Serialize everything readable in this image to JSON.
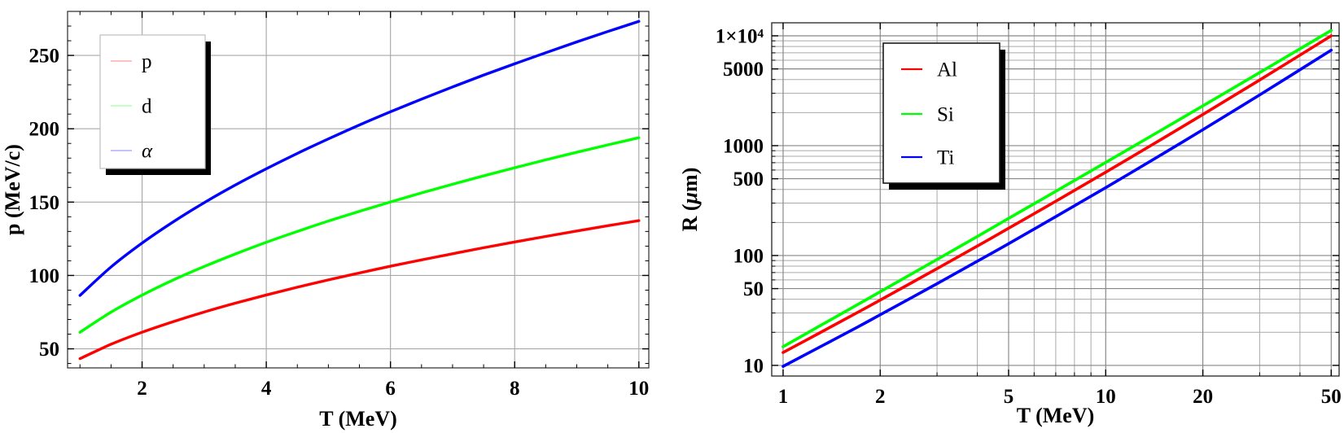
{
  "page": {
    "background": "#ffffff"
  },
  "chart_data": [
    {
      "id": "momentum",
      "type": "line",
      "title": "",
      "xlabel": "T (MeV)",
      "ylabel": "p (MeV/c)",
      "xscale": "linear",
      "yscale": "linear",
      "xlim": [
        0.8,
        10.16
      ],
      "ylim": [
        37,
        280
      ],
      "grid_draw_minor": false,
      "ticks": {
        "x_major": [
          {
            "v": 2,
            "label": "2"
          },
          {
            "v": 4,
            "label": "4"
          },
          {
            "v": 6,
            "label": "6"
          },
          {
            "v": 8,
            "label": "8"
          },
          {
            "v": 10,
            "label": "10"
          }
        ],
        "y_major": [
          {
            "v": 50,
            "label": "50"
          },
          {
            "v": 100,
            "label": "100"
          },
          {
            "v": 150,
            "label": "150"
          },
          {
            "v": 200,
            "label": "200"
          },
          {
            "v": 250,
            "label": "250"
          }
        ],
        "x_minor": [
          1,
          1.5,
          2.5,
          3,
          3.5,
          4.5,
          5,
          5.5,
          6.5,
          7,
          7.5,
          8.5,
          9,
          9.5
        ],
        "y_minor": [
          40,
          60,
          70,
          80,
          90,
          110,
          120,
          130,
          140,
          160,
          170,
          180,
          190,
          210,
          220,
          230,
          240,
          260,
          270
        ]
      },
      "legend": {
        "position": "top-left",
        "entries": [
          {
            "label": "p",
            "color": "#ff0000"
          },
          {
            "label": "d",
            "color": "#00ff00"
          },
          {
            "label": "α",
            "color": "#0000ff"
          }
        ]
      },
      "x": [
        1,
        1.5,
        2,
        2.5,
        3,
        3.5,
        4,
        4.5,
        5,
        5.5,
        6,
        6.5,
        7,
        7.5,
        8,
        8.5,
        9,
        9.5,
        10
      ],
      "series": [
        {
          "name": "p",
          "color": "#ff0000",
          "values": [
            43.3,
            53.1,
            61.3,
            68.5,
            75.1,
            81.1,
            86.7,
            92.0,
            97.0,
            101.7,
            106.3,
            110.6,
            114.8,
            118.9,
            122.8,
            126.6,
            130.3,
            133.9,
            137.4
          ]
        },
        {
          "name": "d",
          "color": "#00ff00",
          "values": [
            61.3,
            75.0,
            86.6,
            96.9,
            106.1,
            114.6,
            122.6,
            130.0,
            137.1,
            143.7,
            150.1,
            156.3,
            162.2,
            167.9,
            173.4,
            178.8,
            184.0,
            189.0,
            193.9
          ]
        },
        {
          "name": "α",
          "color": "#0000ff",
          "values": [
            86.4,
            105.8,
            122.1,
            136.5,
            149.6,
            161.6,
            172.7,
            183.2,
            193.1,
            202.6,
            211.6,
            220.2,
            228.5,
            236.6,
            244.3,
            251.8,
            259.2,
            266.3,
            273.2
          ]
        }
      ]
    },
    {
      "id": "range",
      "type": "line",
      "title": "",
      "xlabel": "T (MeV)",
      "ylabel": "R (μm)",
      "xscale": "log",
      "yscale": "log",
      "xlim": [
        0.922,
        52.9
      ],
      "ylim": [
        8.0,
        13140
      ],
      "grid_draw_minor": true,
      "ticks": {
        "x_major": [
          {
            "v": 1,
            "label": "1"
          },
          {
            "v": 2,
            "label": "2"
          },
          {
            "v": 5,
            "label": "5"
          },
          {
            "v": 10,
            "label": "10"
          },
          {
            "v": 20,
            "label": "20"
          },
          {
            "v": 50,
            "label": "50"
          }
        ],
        "y_major": [
          {
            "v": 10000,
            "label": "1×10⁴"
          },
          {
            "v": 5000,
            "label": "5000"
          },
          {
            "v": 1000,
            "label": "1000"
          },
          {
            "v": 500,
            "label": "500"
          },
          {
            "v": 100,
            "label": "100"
          },
          {
            "v": 50,
            "label": "50"
          },
          {
            "v": 10,
            "label": "10"
          }
        ],
        "x_minor": [
          3,
          4,
          6,
          7,
          8,
          9,
          30,
          40
        ],
        "y_minor": [
          20,
          30,
          40,
          60,
          70,
          80,
          90,
          200,
          300,
          400,
          600,
          700,
          800,
          900,
          2000,
          3000,
          4000,
          6000,
          7000,
          8000,
          9000
        ]
      },
      "legend": {
        "position": "top-left",
        "entries": [
          {
            "label": "Al",
            "color": "#ff0000"
          },
          {
            "label": "Si",
            "color": "#00ff00"
          },
          {
            "label": "Ti",
            "color": "#0000ff"
          }
        ]
      },
      "x": [
        1,
        1.3,
        1.7,
        2,
        3,
        4,
        5,
        7,
        10,
        15,
        20,
        30,
        50
      ],
      "series": [
        {
          "name": "Al",
          "color": "#ff0000",
          "values": [
            13.1,
            19.8,
            30.3,
            39.3,
            76.0,
            122,
            177,
            312,
            574,
            1160,
            1923,
            3960,
            10000
          ]
        },
        {
          "name": "Si",
          "color": "#00ff00",
          "values": [
            14.8,
            22.9,
            35.7,
            46.8,
            92.1,
            149,
            218,
            384,
            704,
            1406,
            2302,
            4626,
            11200
          ]
        },
        {
          "name": "Ti",
          "color": "#0000ff",
          "values": [
            9.8,
            14.7,
            22.3,
            28.9,
            55.4,
            88.7,
            128,
            226,
            415,
            840,
            1397,
            2896,
            7400
          ]
        }
      ]
    }
  ]
}
